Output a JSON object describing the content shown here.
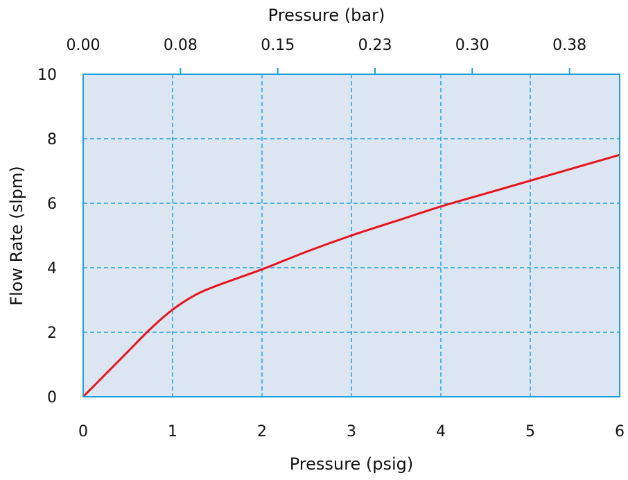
{
  "colors": {
    "plot_background": "#dce6f2",
    "axis": "#1ea0dc",
    "grid": "#1ea0dc",
    "series": "#e8131b"
  },
  "chart_data": {
    "type": "line",
    "xlabel": "Pressure (psig)",
    "ylabel": "Flow Rate (slpm)",
    "x2label": "Pressure (bar)",
    "xlim": [
      0,
      6
    ],
    "ylim": [
      0,
      10
    ],
    "x_ticks": [
      "0",
      "1",
      "2",
      "3",
      "4",
      "5",
      "6"
    ],
    "y_ticks": [
      "0",
      "2",
      "4",
      "6",
      "8",
      "10"
    ],
    "x2_ticks": [
      "0.00",
      "0.08",
      "0.15",
      "0.23",
      "0.30",
      "0.38"
    ],
    "x2_tick_values_psig": [
      0,
      1.088,
      2.176,
      3.264,
      4.351,
      5.439
    ],
    "grid": true,
    "grid_style": "dashed",
    "series": [
      {
        "x": [
          0,
          0.25,
          0.5,
          0.75,
          1.0,
          1.25,
          1.5,
          2.0,
          2.5,
          3.0,
          3.5,
          4.0,
          4.5,
          5.0,
          5.5,
          6.0
        ],
        "y": [
          0,
          0.7,
          1.4,
          2.1,
          2.7,
          3.15,
          3.45,
          3.95,
          4.5,
          5.0,
          5.45,
          5.9,
          6.3,
          6.7,
          7.1,
          7.5
        ]
      }
    ]
  }
}
